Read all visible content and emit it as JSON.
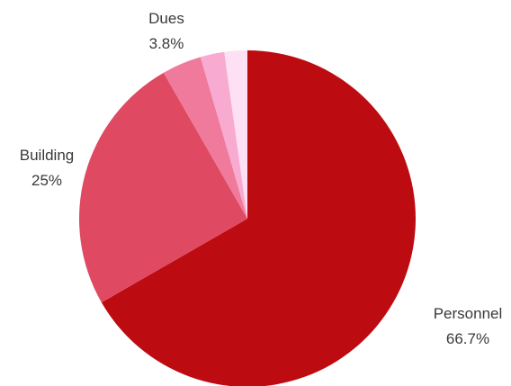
{
  "chart_data": {
    "type": "pie",
    "start_angle": "12 o'clock",
    "direction": "clockwise",
    "slices": [
      {
        "label": "Personnel",
        "value": 66.7,
        "value_label": "66.7%",
        "color": "#bd0b12",
        "show_label": true
      },
      {
        "label": "Building",
        "value": 25,
        "value_label": "25%",
        "color": "#df4a62",
        "show_label": true
      },
      {
        "label": "Dues",
        "value": 3.8,
        "value_label": "3.8%",
        "color": "#ef7a9b",
        "show_label": true
      },
      {
        "label": "",
        "value": 2.3,
        "value_label": "",
        "color": "#f8aad0",
        "show_label": false
      },
      {
        "label": "",
        "value": 2.2,
        "value_label": "",
        "color": "#fde0f4",
        "show_label": false
      }
    ]
  }
}
